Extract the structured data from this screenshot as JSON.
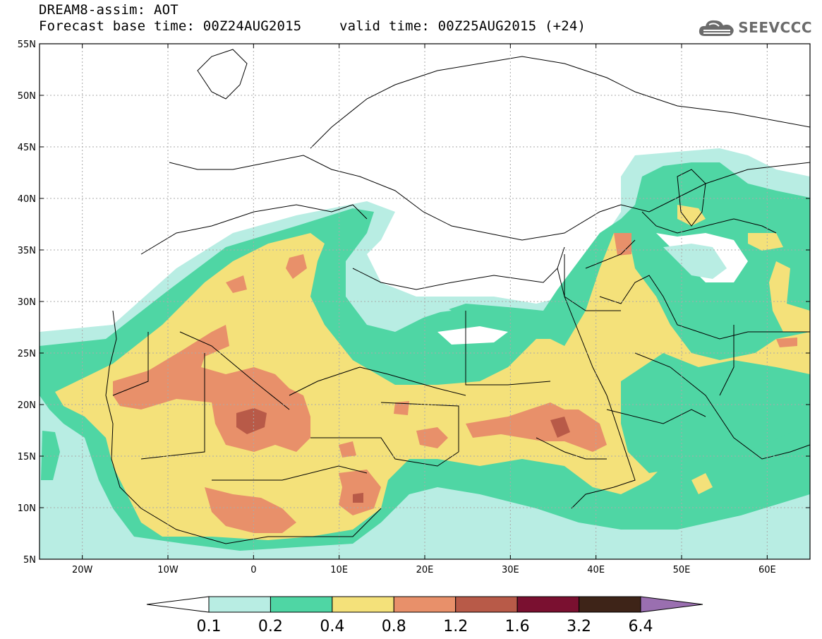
{
  "header": {
    "title": "DREAM8-assim: AOT",
    "base_time": "Forecast base time: 00Z24AUG2015",
    "valid_time": "valid time: 00Z25AUG2015 (+24)",
    "logo_text": "SEEVCCC"
  },
  "map": {
    "lon_range": [
      -25,
      65
    ],
    "lat_range": [
      5,
      55
    ],
    "lat_ticks": [
      "55N",
      "50N",
      "45N",
      "40N",
      "35N",
      "30N",
      "25N",
      "20N",
      "15N",
      "10N",
      "5N"
    ],
    "lon_ticks": [
      "20W",
      "10W",
      "0",
      "10E",
      "20E",
      "30E",
      "40E",
      "50E",
      "60E"
    ]
  },
  "colorbar": {
    "levels": [
      "0.1",
      "0.2",
      "0.4",
      "0.8",
      "1.2",
      "1.6",
      "3.2",
      "6.4"
    ],
    "colors": [
      "#ffffff",
      "#b8ede3",
      "#4fd6a4",
      "#f4e17a",
      "#e8906a",
      "#b85a48",
      "#7a1030",
      "#3e2418",
      "#9a6fb0"
    ]
  }
}
